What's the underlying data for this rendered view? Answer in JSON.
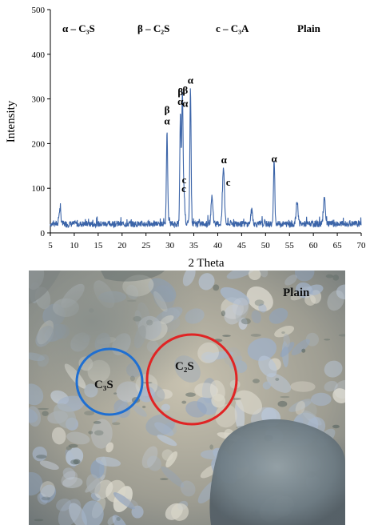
{
  "chart_data": {
    "type": "line",
    "xlabel": "2 Theta",
    "ylabel": "Intensity",
    "xlim": [
      5,
      70
    ],
    "ylim": [
      0,
      500
    ],
    "x_ticks": [
      5,
      10,
      15,
      20,
      25,
      30,
      35,
      40,
      45,
      50,
      55,
      60,
      65,
      70
    ],
    "y_ticks": [
      0,
      100,
      200,
      300,
      400,
      500
    ],
    "series": [
      {
        "color": "#3b64a8",
        "peaks": [
          {
            "x": 7.0,
            "y": 52
          },
          {
            "x": 29.4,
            "y": 228
          },
          {
            "x": 29.8,
            "y": 28
          },
          {
            "x": 32.2,
            "y": 265
          },
          {
            "x": 32.6,
            "y": 292
          },
          {
            "x": 32.9,
            "y": 95
          },
          {
            "x": 34.3,
            "y": 322
          },
          {
            "x": 38.8,
            "y": 80
          },
          {
            "x": 41.2,
            "y": 145
          },
          {
            "x": 47.1,
            "y": 50
          },
          {
            "x": 51.8,
            "y": 165
          },
          {
            "x": 56.6,
            "y": 70
          },
          {
            "x": 62.3,
            "y": 80
          }
        ]
      }
    ],
    "legend": [
      {
        "symbol": "α",
        "text": "α – C₃S"
      },
      {
        "symbol": "β",
        "text": "β – C₂S"
      },
      {
        "symbol": "c",
        "text": "c – C₃A"
      }
    ],
    "title": "Plain",
    "annotations": [
      {
        "text": "β",
        "x": 29.4,
        "y": 268
      },
      {
        "text": "α",
        "x": 29.4,
        "y": 243
      },
      {
        "text": "β",
        "x": 32.2,
        "y": 308
      },
      {
        "text": "α",
        "x": 32.2,
        "y": 287
      },
      {
        "text": "β",
        "x": 33.2,
        "y": 312
      },
      {
        "text": "α",
        "x": 33.2,
        "y": 282
      },
      {
        "text": "α",
        "x": 34.3,
        "y": 334
      },
      {
        "text": "c",
        "x": 33.0,
        "y": 111
      },
      {
        "text": "c",
        "x": 32.9,
        "y": 91
      },
      {
        "text": "α",
        "x": 41.3,
        "y": 156
      },
      {
        "text": "c",
        "x": 42.2,
        "y": 106
      },
      {
        "text": "α",
        "x": 51.8,
        "y": 159
      }
    ]
  },
  "micrograph": {
    "title": "Plain",
    "regions": [
      {
        "label": "C₃S",
        "color": "#1f6fd1"
      },
      {
        "label": "C₂S",
        "color": "#e02424"
      }
    ]
  }
}
